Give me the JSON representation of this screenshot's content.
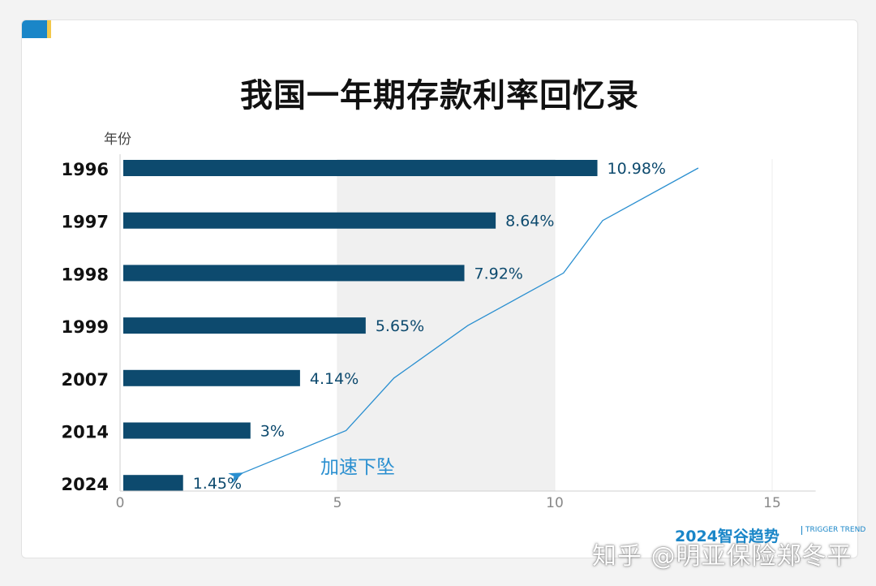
{
  "title": "我国一年期存款利率回忆录",
  "watermark": "知乎 @明亚保险郑冬平",
  "brand": {
    "name": "2024智谷趋势",
    "sub": "TRIGGER TREND"
  },
  "colors": {
    "bar": "#0d4a6e",
    "line": "#2a8fd0",
    "shade": "#f0f0f0",
    "annotation": "#2a8fd0"
  },
  "chart_data": {
    "type": "bar",
    "orientation": "horizontal",
    "ylabel": "年份",
    "categories": [
      "1996",
      "1997",
      "1998",
      "1999",
      "2007",
      "2014",
      "2024"
    ],
    "values": [
      10.98,
      8.64,
      7.92,
      5.65,
      4.14,
      3,
      1.45
    ],
    "value_labels": [
      "10.98%",
      "8.64%",
      "7.92%",
      "5.65%",
      "4.14%",
      "3%",
      "1.45%"
    ],
    "xlim": [
      0,
      16
    ],
    "xticks": [
      0,
      5,
      10,
      15
    ],
    "shaded_band": [
      5,
      10
    ],
    "annotation": "加速下坠",
    "trend_line": {
      "x": [
        13.3,
        11.1,
        10.2,
        8.0,
        6.3,
        5.2,
        2.8
      ]
    }
  }
}
